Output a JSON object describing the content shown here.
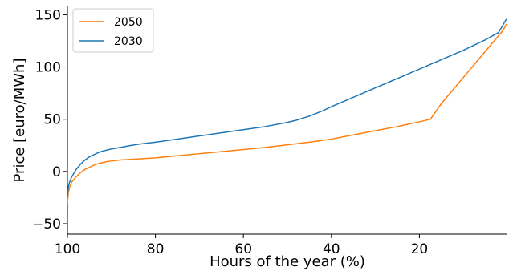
{
  "chart_data": {
    "type": "line",
    "xlabel": "Hours of the year (%)",
    "ylabel": "Price [euro/MWh]",
    "xlim": [
      100,
      0
    ],
    "ylim": [
      -60,
      158
    ],
    "x_ticks": [
      100,
      80,
      60,
      40,
      20
    ],
    "y_ticks": [
      -50,
      0,
      50,
      100,
      150
    ],
    "legend_position": "top-left",
    "grid": false,
    "series": [
      {
        "name": "2050",
        "color": "#ff7f0e",
        "points": [
          [
            100,
            -30
          ],
          [
            99.8,
            -20
          ],
          [
            99.5,
            -15
          ],
          [
            99,
            -10
          ],
          [
            98,
            -5
          ],
          [
            97,
            -1
          ],
          [
            96,
            2
          ],
          [
            95,
            4
          ],
          [
            94,
            6
          ],
          [
            93,
            7.5
          ],
          [
            92,
            8.5
          ],
          [
            91,
            9.5
          ],
          [
            90,
            10
          ],
          [
            88,
            11
          ],
          [
            86,
            11.5
          ],
          [
            84,
            12
          ],
          [
            82,
            12.5
          ],
          [
            80,
            13
          ],
          [
            75,
            15
          ],
          [
            70,
            17
          ],
          [
            65,
            19
          ],
          [
            60,
            21
          ],
          [
            55,
            23
          ],
          [
            50,
            25.5
          ],
          [
            45,
            28
          ],
          [
            40,
            31
          ],
          [
            35,
            35
          ],
          [
            30,
            39
          ],
          [
            25,
            43
          ],
          [
            20,
            47.5
          ],
          [
            17.5,
            50
          ],
          [
            15,
            65
          ],
          [
            12,
            80
          ],
          [
            9,
            95
          ],
          [
            6,
            110
          ],
          [
            3,
            125
          ],
          [
            1,
            135
          ],
          [
            0.2,
            141
          ]
        ]
      },
      {
        "name": "2030",
        "color": "#1f77b4",
        "points": [
          [
            100,
            -25
          ],
          [
            99.8,
            -15
          ],
          [
            99.5,
            -10
          ],
          [
            99,
            -5
          ],
          [
            98,
            2
          ],
          [
            97,
            7
          ],
          [
            96,
            11
          ],
          [
            95,
            14
          ],
          [
            94,
            16
          ],
          [
            93,
            18
          ],
          [
            92,
            19.5
          ],
          [
            91,
            20.5
          ],
          [
            90,
            21.5
          ],
          [
            88,
            23
          ],
          [
            86,
            24.5
          ],
          [
            84,
            26
          ],
          [
            82,
            27
          ],
          [
            80,
            28
          ],
          [
            75,
            31
          ],
          [
            70,
            34
          ],
          [
            65,
            37
          ],
          [
            60,
            40
          ],
          [
            55,
            43
          ],
          [
            50,
            47
          ],
          [
            48,
            49
          ],
          [
            45,
            53
          ],
          [
            42,
            58
          ],
          [
            40,
            62
          ],
          [
            35,
            71
          ],
          [
            30,
            80
          ],
          [
            25,
            89
          ],
          [
            20,
            98
          ],
          [
            15,
            107
          ],
          [
            10,
            116
          ],
          [
            5,
            126
          ],
          [
            2,
            133
          ],
          [
            0.2,
            146
          ]
        ]
      }
    ]
  }
}
